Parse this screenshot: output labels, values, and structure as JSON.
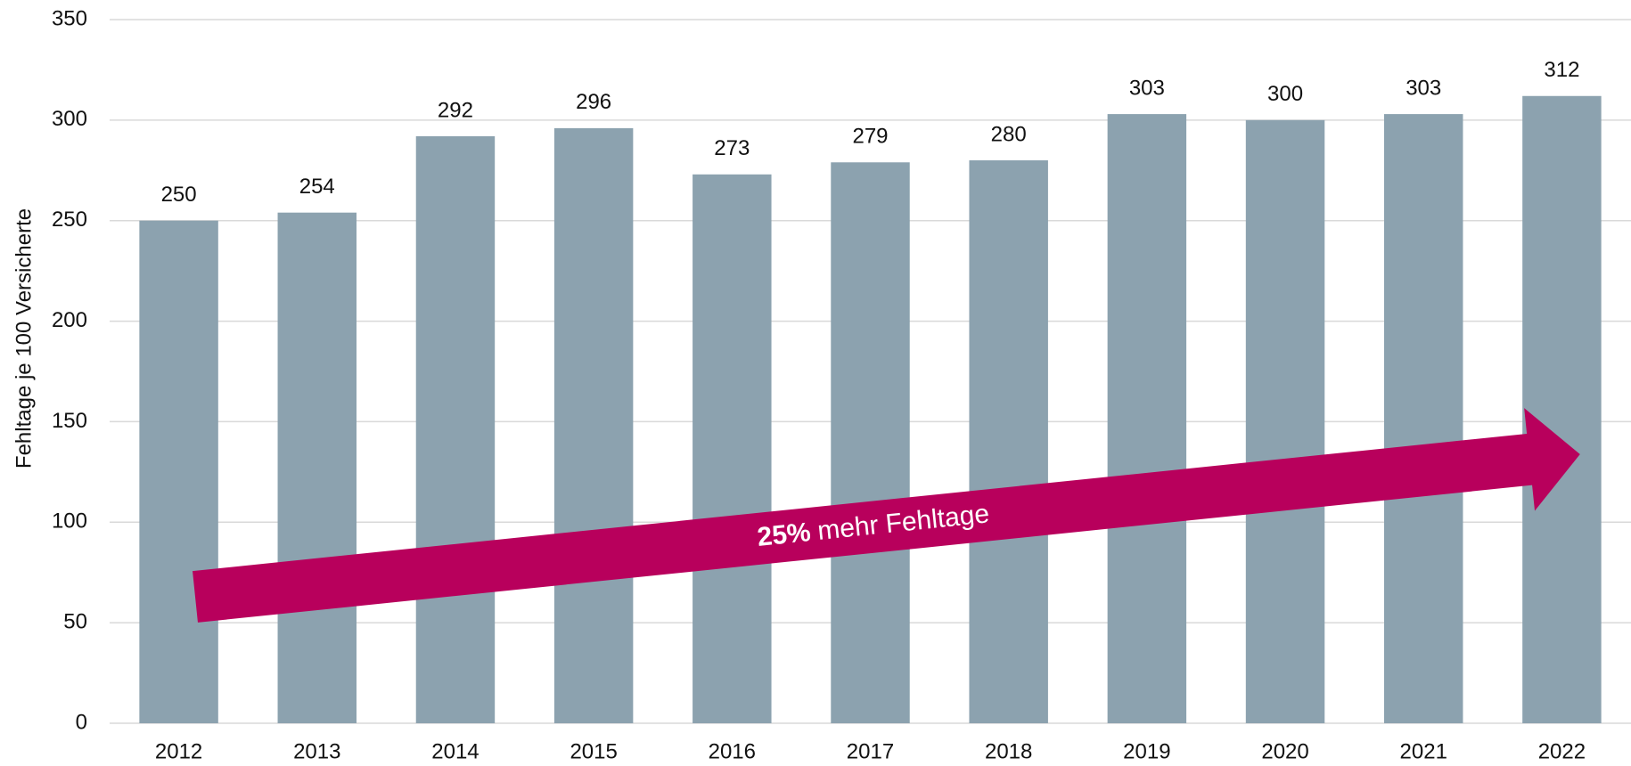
{
  "chart_data": {
    "type": "bar",
    "y_label": "Fehltage je 100 Versicherte",
    "categories": [
      "2012",
      "2013",
      "2014",
      "2015",
      "2016",
      "2017",
      "2018",
      "2019",
      "2020",
      "2021",
      "2022"
    ],
    "values": [
      250,
      254,
      292,
      296,
      273,
      279,
      280,
      303,
      300,
      303,
      312
    ],
    "color": "#8ca2af",
    "ylim": [
      0,
      350
    ],
    "yticks": [
      0,
      50,
      100,
      150,
      200,
      250,
      300,
      350
    ],
    "grid": true,
    "annotation": {
      "bold": "25%",
      "text": "mehr Fehltage",
      "color": "#b8005c"
    }
  }
}
